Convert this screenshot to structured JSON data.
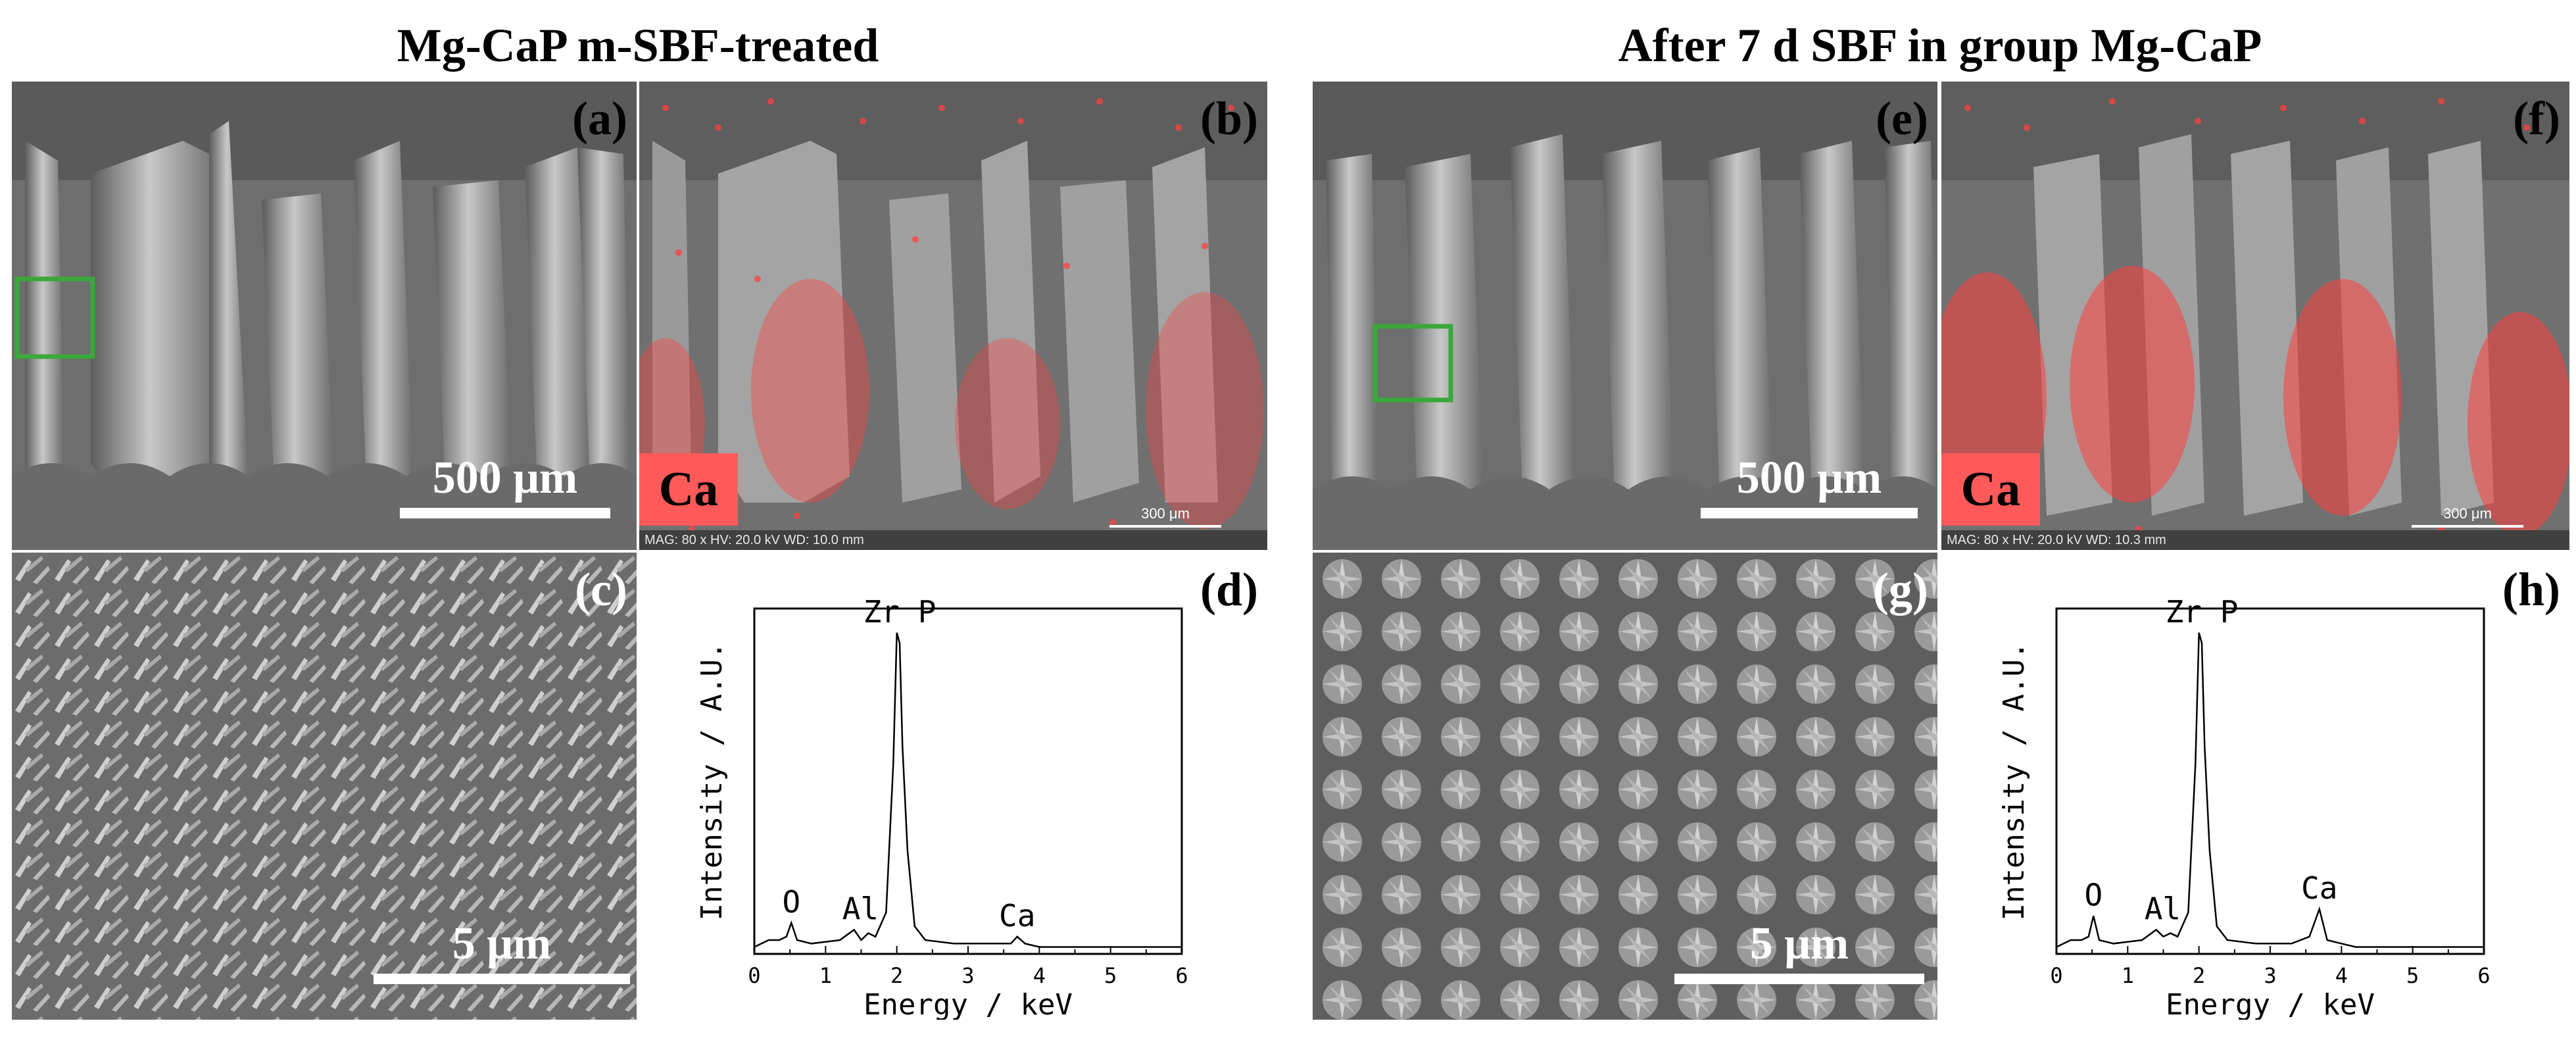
{
  "titles": {
    "left": "Mg-CaP m-SBF-treated",
    "right": "After 7 d SBF in group Mg-CaP"
  },
  "panels": {
    "a": {
      "label": "(a)",
      "scalebar": "500 μm"
    },
    "b": {
      "label": "(b)",
      "element": "Ca",
      "info": "MAG: 80 x  HV: 20.0 kV  WD: 10.0 mm",
      "info_scale": "300 μm"
    },
    "c": {
      "label": "(c)",
      "scalebar": "5 μm"
    },
    "d": {
      "label": "(d)"
    },
    "e": {
      "label": "(e)",
      "scalebar": "500 μm"
    },
    "f": {
      "label": "(f)",
      "element": "Ca",
      "info": "MAG: 80 x  HV: 20.0 kV  WD: 10.3 mm",
      "info_scale": "300 μm"
    },
    "g": {
      "label": "(g)",
      "scalebar": "5 μm"
    },
    "h": {
      "label": "(h)"
    }
  },
  "colors": {
    "ca_map": "#ff4040",
    "roi_box": "#3aa83a"
  },
  "chart_data": [
    {
      "type": "line",
      "panel": "d",
      "xlabel": "Energy / keV",
      "ylabel": "Intensity / A.U.",
      "xlim": [
        0,
        6
      ],
      "xticks": [
        0,
        1,
        2,
        3,
        4,
        5,
        6
      ],
      "x": [
        0.0,
        0.2,
        0.35,
        0.45,
        0.52,
        0.6,
        0.8,
        1.2,
        1.4,
        1.5,
        1.6,
        1.7,
        1.85,
        1.95,
        2.0,
        2.04,
        2.08,
        2.15,
        2.25,
        2.4,
        2.8,
        3.3,
        3.6,
        3.69,
        3.8,
        4.0,
        4.5,
        5.0,
        6.0
      ],
      "y": [
        0.02,
        0.04,
        0.04,
        0.05,
        0.09,
        0.04,
        0.03,
        0.04,
        0.07,
        0.04,
        0.06,
        0.05,
        0.12,
        0.55,
        0.93,
        0.9,
        0.6,
        0.3,
        0.08,
        0.04,
        0.03,
        0.03,
        0.03,
        0.05,
        0.03,
        0.02,
        0.02,
        0.02,
        0.02
      ],
      "annotations": [
        {
          "text": "O",
          "x": 0.52
        },
        {
          "text": "Al",
          "x": 1.49
        },
        {
          "text": "Zr P",
          "x": 2.04
        },
        {
          "text": "Ca",
          "x": 3.69
        }
      ]
    },
    {
      "type": "line",
      "panel": "h",
      "xlabel": "Energy / keV",
      "ylabel": "Intensity / A.U.",
      "xlim": [
        0,
        6
      ],
      "xticks": [
        0,
        1,
        2,
        3,
        4,
        5,
        6
      ],
      "x": [
        0.0,
        0.2,
        0.35,
        0.45,
        0.52,
        0.6,
        0.8,
        1.2,
        1.4,
        1.5,
        1.6,
        1.7,
        1.85,
        1.95,
        2.0,
        2.04,
        2.08,
        2.15,
        2.25,
        2.4,
        2.8,
        3.3,
        3.55,
        3.69,
        3.8,
        4.0,
        4.2,
        5.0,
        6.0
      ],
      "y": [
        0.02,
        0.04,
        0.04,
        0.05,
        0.11,
        0.04,
        0.03,
        0.04,
        0.07,
        0.05,
        0.06,
        0.05,
        0.12,
        0.55,
        0.93,
        0.9,
        0.6,
        0.3,
        0.08,
        0.04,
        0.03,
        0.03,
        0.05,
        0.13,
        0.04,
        0.03,
        0.02,
        0.02,
        0.02
      ],
      "annotations": [
        {
          "text": "O",
          "x": 0.52
        },
        {
          "text": "Al",
          "x": 1.49
        },
        {
          "text": "Zr P",
          "x": 2.04
        },
        {
          "text": "Ca",
          "x": 3.69
        }
      ]
    }
  ]
}
